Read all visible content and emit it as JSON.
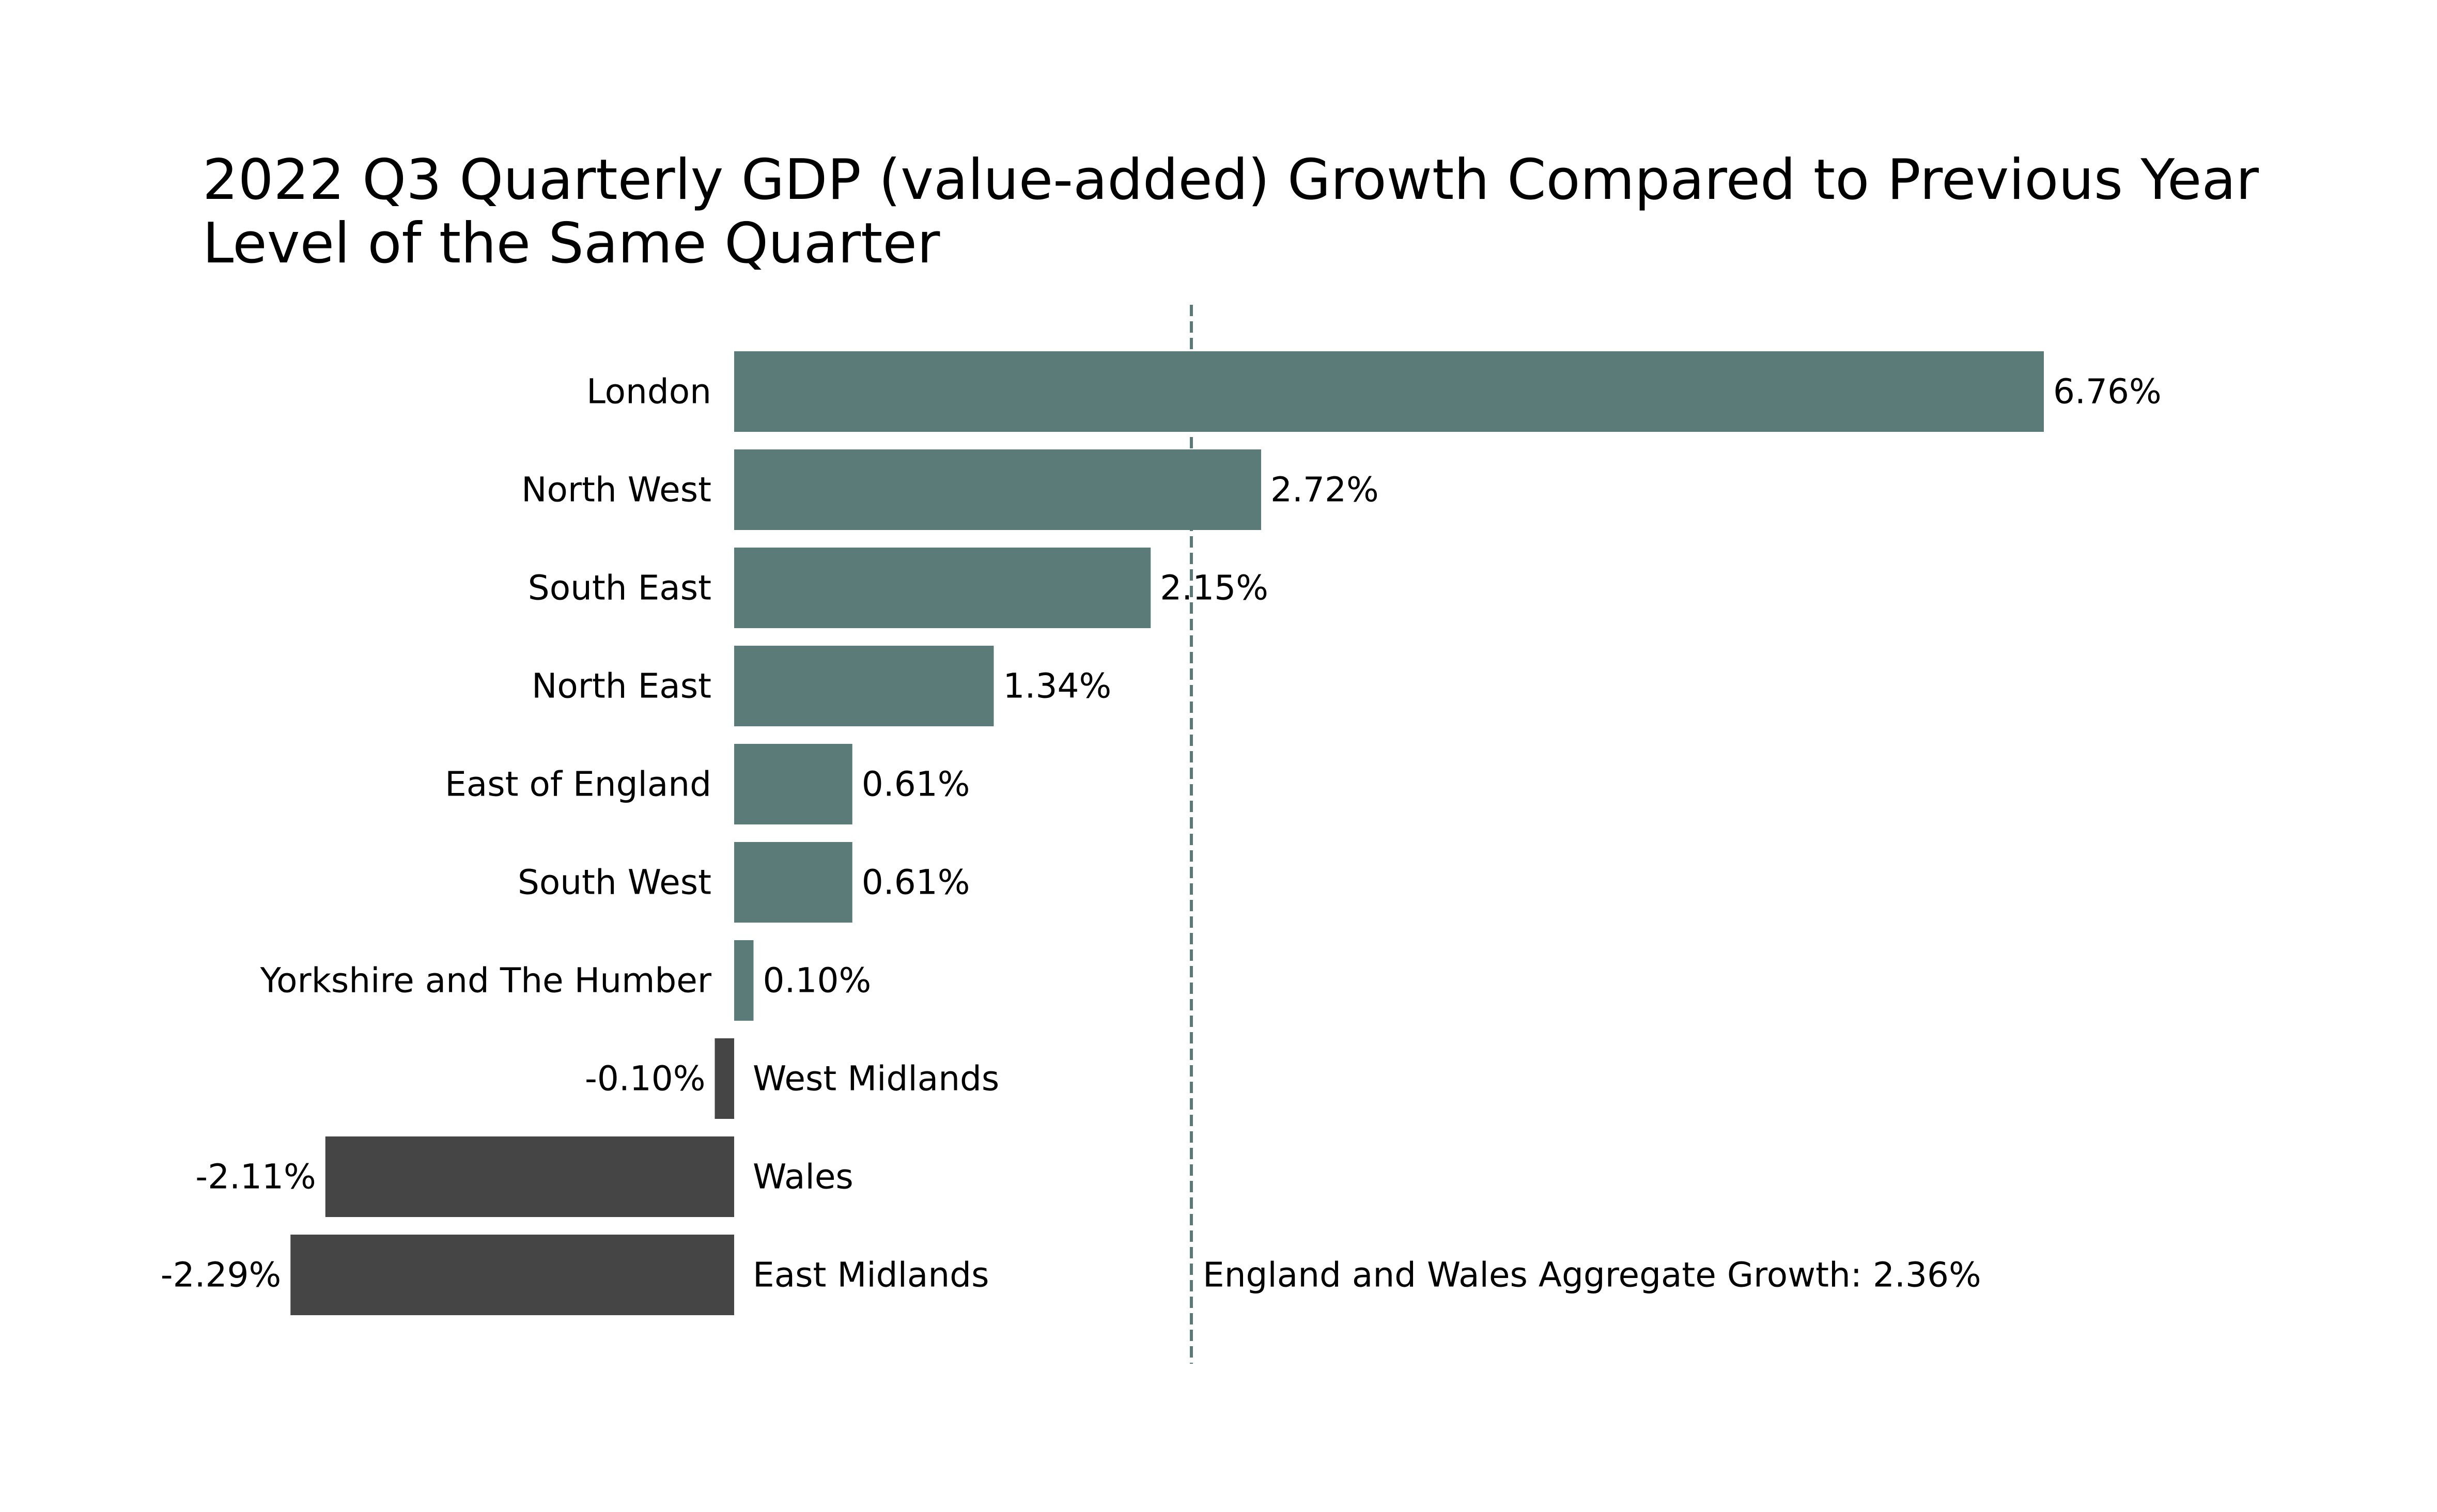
{
  "chart_data": {
    "type": "bar",
    "orientation": "horizontal",
    "title_lines": [
      "2022 Q3 Quarterly GDP (value-added) Growth Compared to Previous Year",
      "Level of the Same Quarter"
    ],
    "categories": [
      "London",
      "North West",
      "South East",
      "North East",
      "East of England",
      "South West",
      "Yorkshire and The Humber",
      "West Midlands",
      "Wales",
      "East Midlands"
    ],
    "values": [
      6.76,
      2.72,
      2.15,
      1.34,
      0.61,
      0.61,
      0.1,
      -0.1,
      -2.11,
      -2.29
    ],
    "value_labels": [
      "6.76%",
      "2.72%",
      "2.15%",
      "1.34%",
      "0.61%",
      "0.61%",
      "0.10%",
      "-0.10%",
      "-2.11%",
      "-2.29%"
    ],
    "xlim": [
      -2.29,
      6.76
    ],
    "reference_line": {
      "value": 2.36,
      "label": "England and Wales Aggregate Growth: 2.36%",
      "style": "dashed"
    },
    "axes_visible": false,
    "grid": false,
    "xlabel": "",
    "ylabel": "",
    "colors": {
      "positive": "#5b7b79",
      "negative": "#454545",
      "reference": "#5b7b79",
      "text": "#000000"
    }
  }
}
